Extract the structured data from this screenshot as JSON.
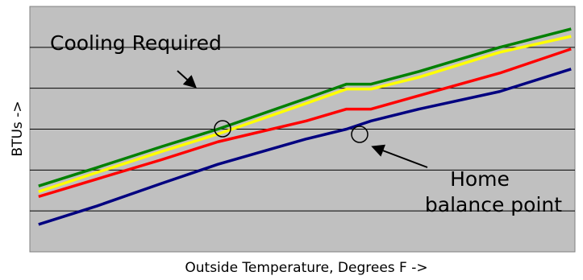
{
  "chart_data": {
    "type": "line",
    "x_label": "Outside Temperature, Degrees F ->",
    "y_label": "BTUs ->",
    "annotations": [
      {
        "lines": [
          "Cooling Required"
        ]
      },
      {
        "lines": [
          "Home",
          "balance point"
        ]
      }
    ],
    "x": [
      1.6,
      12.3,
      24.1,
      34.5,
      50.7,
      58.1,
      62.6,
      71.4,
      86.2,
      99.3
    ],
    "xlim": [
      0,
      100
    ],
    "ylim": [
      0,
      6
    ],
    "ygrid": [
      1,
      2,
      3,
      4,
      5
    ],
    "grid": true,
    "background": "#c0c0c0",
    "series": [
      {
        "color": "#008000",
        "values": [
          1.61,
          2.06,
          2.57,
          3.0,
          3.75,
          4.1,
          4.1,
          4.41,
          5.0,
          5.45
        ]
      },
      {
        "color": "#ffff00",
        "values": [
          1.47,
          1.94,
          2.45,
          2.88,
          3.63,
          3.98,
          3.98,
          4.27,
          4.88,
          5.27
        ]
      },
      {
        "color": "#ff0000",
        "values": [
          1.35,
          1.78,
          2.25,
          2.69,
          3.2,
          3.49,
          3.49,
          3.82,
          4.37,
          4.96
        ]
      },
      {
        "color": "#000080",
        "values": [
          0.67,
          1.12,
          1.67,
          2.14,
          2.76,
          3.0,
          3.2,
          3.49,
          3.92,
          4.47
        ]
      }
    ]
  }
}
